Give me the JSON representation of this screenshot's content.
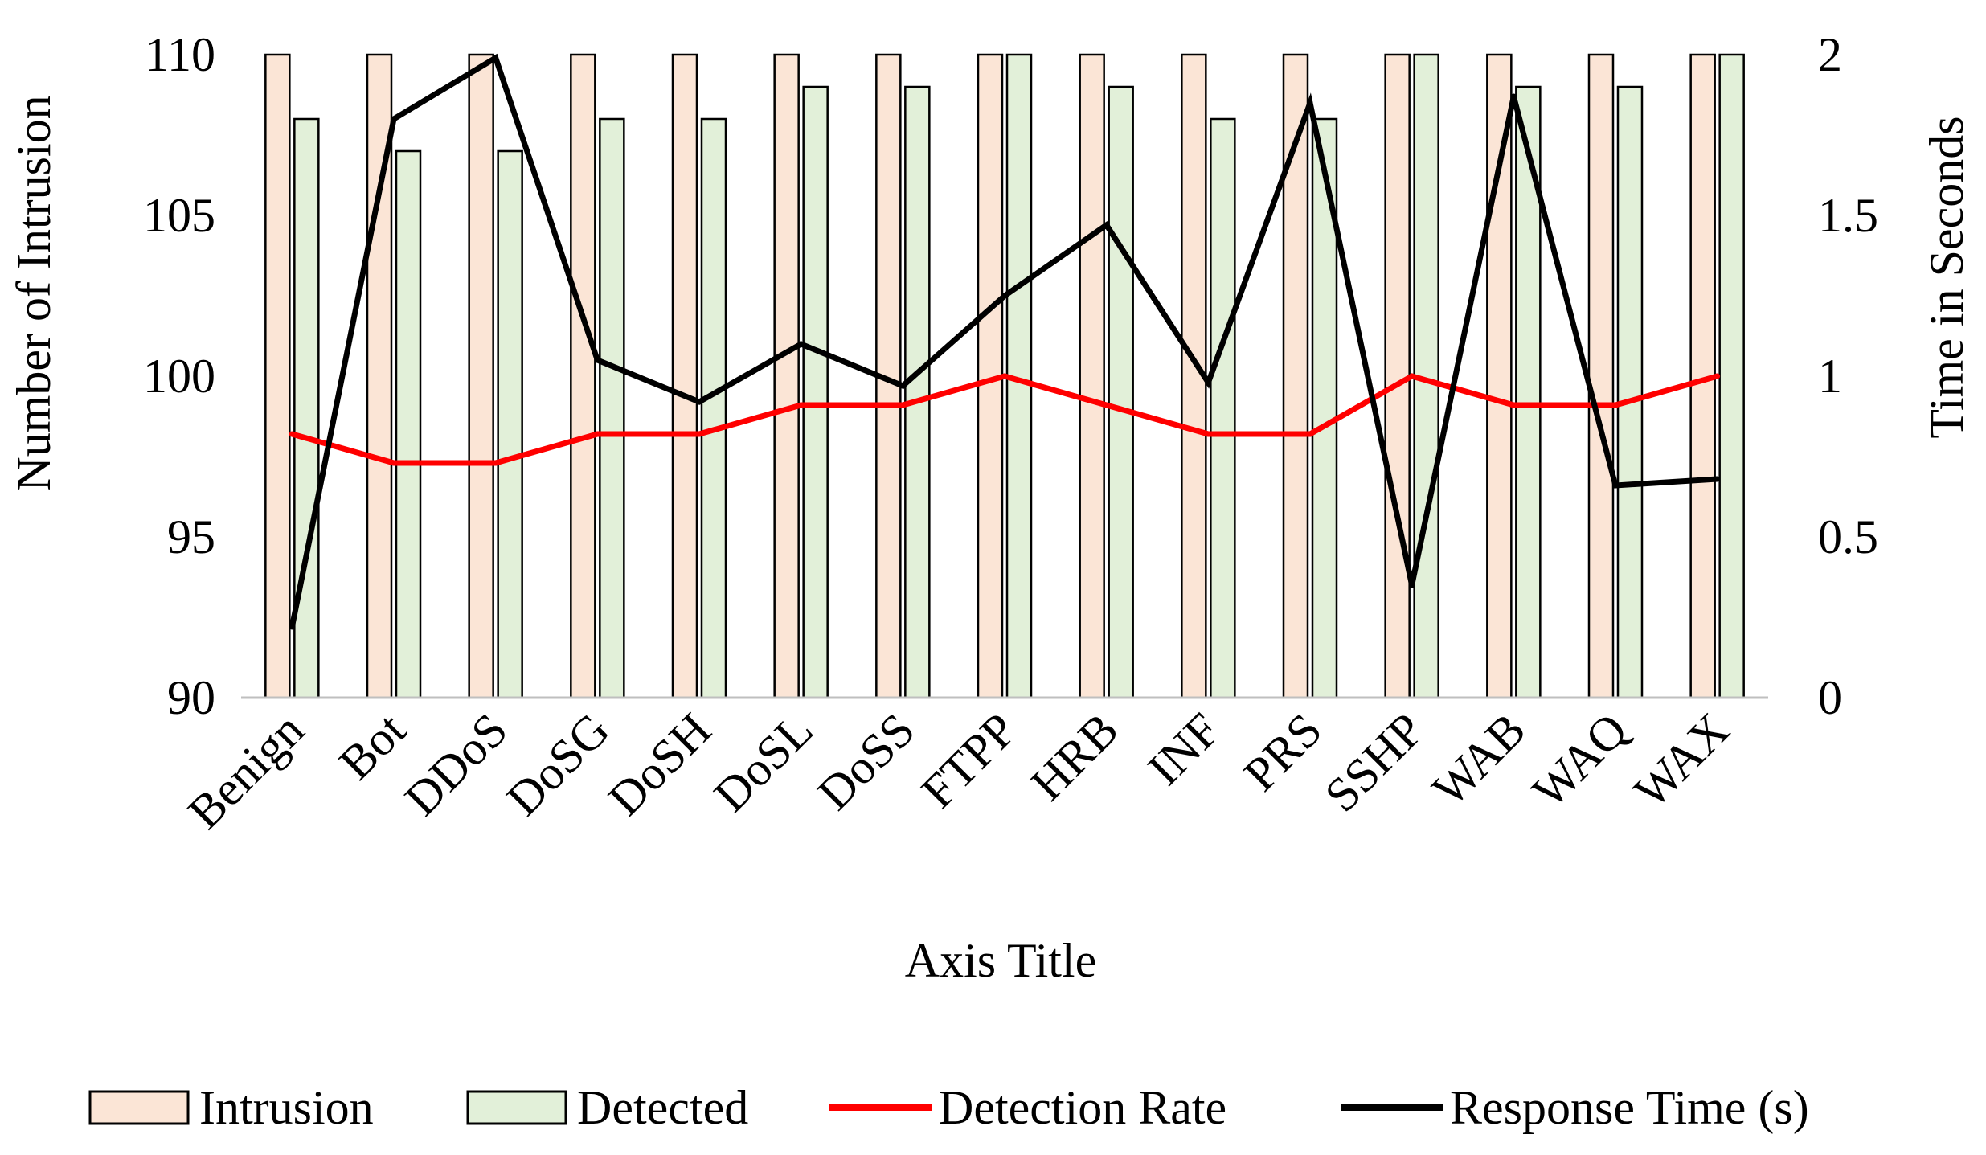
{
  "chart_data": {
    "type": "bar",
    "title": "",
    "xlabel": "Axis Title",
    "ylabel": "Number of Intrusion",
    "y2label": "Time in Seconds",
    "categories": [
      "Benign",
      "Bot",
      "DDoS",
      "DoSG",
      "DoSH",
      "DoSL",
      "DoSS",
      "FTPP",
      "HRB",
      "INF",
      "PRS",
      "SSHP",
      "WAB",
      "WAQ",
      "WAX"
    ],
    "ylim": [
      90,
      110
    ],
    "y_ticks": [
      "90",
      "95",
      "100",
      "105",
      "110"
    ],
    "y2lim": [
      0,
      2
    ],
    "y2_ticks": [
      "0",
      "0.5",
      "1",
      "1.5",
      "2"
    ],
    "grid": false,
    "legend_position": "bottom",
    "series": [
      {
        "name": "Intrusion",
        "type": "bar",
        "axis": "left",
        "color": "#FBE5D6",
        "values": [
          110,
          110,
          110,
          110,
          110,
          110,
          110,
          110,
          110,
          110,
          110,
          110,
          110,
          110,
          110
        ]
      },
      {
        "name": "Detected",
        "type": "bar",
        "axis": "left",
        "color": "#E2F0D9",
        "values": [
          108,
          107,
          107,
          108,
          108,
          109,
          109,
          110,
          109,
          108,
          108,
          110,
          109,
          109,
          110
        ]
      },
      {
        "name": "Detection Rate",
        "type": "line",
        "axis": "left",
        "color": "#FF0000",
        "values": [
          98.2,
          97.3,
          97.3,
          98.2,
          98.2,
          99.1,
          99.1,
          100,
          99.1,
          98.2,
          98.2,
          100,
          99.1,
          99.1,
          100
        ]
      },
      {
        "name": "Response Time (s)",
        "type": "line",
        "axis": "right",
        "color": "#000000",
        "values": [
          0.22,
          1.8,
          1.99,
          1.05,
          0.92,
          1.1,
          0.97,
          1.25,
          1.47,
          0.98,
          1.85,
          0.35,
          1.87,
          0.66,
          0.68
        ]
      }
    ]
  }
}
